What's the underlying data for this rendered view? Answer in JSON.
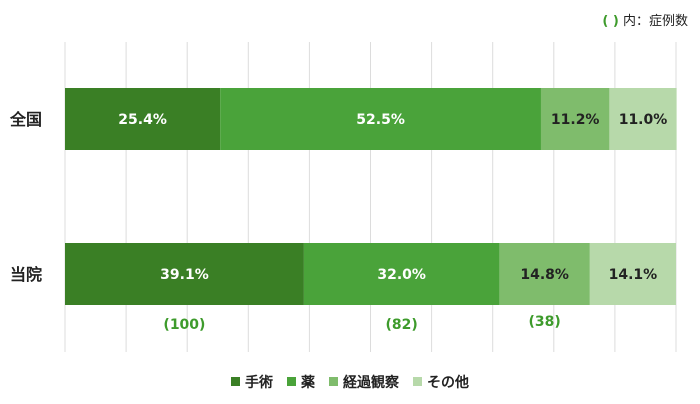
{
  "note": {
    "paren": "( )",
    "text": "内：症例数"
  },
  "chart_data": {
    "type": "bar",
    "orientation": "horizontal",
    "stacked": true,
    "categories": [
      "全国",
      "当院"
    ],
    "series": [
      {
        "name": "手術",
        "values": [
          25.4,
          39.1
        ],
        "labels": [
          "25.4%",
          "39.1%"
        ],
        "color": "#3a7f25",
        "label_color": "#ffffff"
      },
      {
        "name": "薬",
        "values": [
          52.5,
          32.0
        ],
        "labels": [
          "52.5%",
          "32.0%"
        ],
        "color": "#4aa33a",
        "label_color": "#ffffff"
      },
      {
        "name": "経過観察",
        "values": [
          11.2,
          14.8
        ],
        "labels": [
          "11.2%",
          "14.8%"
        ],
        "color": "#7fbc6c",
        "label_color": "#222222"
      },
      {
        "name": "その他",
        "values": [
          11.0,
          14.1
        ],
        "labels": [
          "11.0%",
          "14.1%"
        ],
        "color": "#b7d9aa",
        "label_color": "#222222"
      }
    ],
    "case_counts": {
      "category": "当院",
      "labels": [
        "(100)",
        "(82)",
        "(38)"
      ],
      "color": "#3e9b2c"
    },
    "xlim": [
      0,
      100
    ],
    "grid": true,
    "legend_position": "bottom"
  }
}
